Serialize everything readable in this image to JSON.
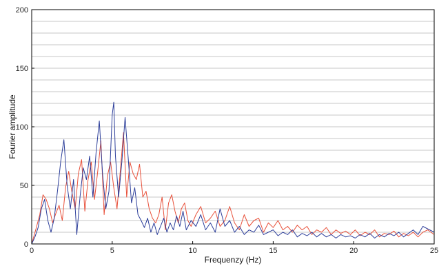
{
  "chart_data": {
    "type": "line",
    "title": "",
    "xlabel": "Frequenzy (Hz)",
    "ylabel": "Fourier amplitude",
    "xlim": [
      0,
      25
    ],
    "ylim": [
      0,
      200
    ],
    "x_ticks": [
      0,
      5,
      10,
      15,
      20,
      25
    ],
    "y_ticks": [
      0,
      50,
      100,
      150,
      200
    ],
    "x_tick_labels": [
      "0",
      "5",
      "10",
      "15",
      "20",
      "25"
    ],
    "y_tick_labels": [
      "0",
      "50",
      "100",
      "150",
      "200"
    ],
    "grid": "horizontal lines every 10 units",
    "legend": "none",
    "series": [
      {
        "color": "#e8503a",
        "points": [
          [
            0,
            0
          ],
          [
            0.25,
            12
          ],
          [
            0.5,
            25
          ],
          [
            0.7,
            42
          ],
          [
            0.9,
            38
          ],
          [
            1.1,
            30
          ],
          [
            1.3,
            18
          ],
          [
            1.5,
            26
          ],
          [
            1.7,
            33
          ],
          [
            1.9,
            20
          ],
          [
            2.1,
            48
          ],
          [
            2.3,
            62
          ],
          [
            2.5,
            44
          ],
          [
            2.7,
            30
          ],
          [
            2.9,
            60
          ],
          [
            3.1,
            72
          ],
          [
            3.3,
            28
          ],
          [
            3.5,
            55
          ],
          [
            3.7,
            70
          ],
          [
            3.9,
            38
          ],
          [
            4.1,
            62
          ],
          [
            4.3,
            88
          ],
          [
            4.5,
            25
          ],
          [
            4.7,
            58
          ],
          [
            4.9,
            70
          ],
          [
            5.1,
            48
          ],
          [
            5.3,
            30
          ],
          [
            5.5,
            62
          ],
          [
            5.7,
            95
          ],
          [
            5.9,
            40
          ],
          [
            6.1,
            70
          ],
          [
            6.3,
            60
          ],
          [
            6.5,
            55
          ],
          [
            6.7,
            68
          ],
          [
            6.9,
            40
          ],
          [
            7.1,
            45
          ],
          [
            7.3,
            30
          ],
          [
            7.5,
            22
          ],
          [
            7.7,
            18
          ],
          [
            7.9,
            25
          ],
          [
            8.1,
            40
          ],
          [
            8.3,
            12
          ],
          [
            8.5,
            35
          ],
          [
            8.7,
            42
          ],
          [
            8.9,
            28
          ],
          [
            9.1,
            18
          ],
          [
            9.3,
            30
          ],
          [
            9.5,
            35
          ],
          [
            9.7,
            20
          ],
          [
            9.9,
            15
          ],
          [
            10.2,
            25
          ],
          [
            10.5,
            32
          ],
          [
            10.8,
            18
          ],
          [
            11.1,
            22
          ],
          [
            11.4,
            28
          ],
          [
            11.7,
            15
          ],
          [
            12.0,
            20
          ],
          [
            12.3,
            32
          ],
          [
            12.6,
            18
          ],
          [
            12.9,
            12
          ],
          [
            13.2,
            25
          ],
          [
            13.5,
            15
          ],
          [
            13.8,
            20
          ],
          [
            14.1,
            22
          ],
          [
            14.4,
            10
          ],
          [
            14.7,
            18
          ],
          [
            15.0,
            14
          ],
          [
            15.3,
            20
          ],
          [
            15.6,
            12
          ],
          [
            15.9,
            15
          ],
          [
            16.2,
            10
          ],
          [
            16.5,
            16
          ],
          [
            16.8,
            12
          ],
          [
            17.1,
            15
          ],
          [
            17.4,
            8
          ],
          [
            17.7,
            12
          ],
          [
            18.0,
            10
          ],
          [
            18.3,
            14
          ],
          [
            18.6,
            8
          ],
          [
            18.9,
            12
          ],
          [
            19.2,
            9
          ],
          [
            19.5,
            11
          ],
          [
            19.8,
            8
          ],
          [
            20.1,
            12
          ],
          [
            20.4,
            7
          ],
          [
            20.7,
            10
          ],
          [
            21.0,
            8
          ],
          [
            21.3,
            12
          ],
          [
            21.6,
            6
          ],
          [
            21.9,
            9
          ],
          [
            22.2,
            8
          ],
          [
            22.5,
            11
          ],
          [
            22.8,
            6
          ],
          [
            23.1,
            9
          ],
          [
            23.4,
            7
          ],
          [
            23.7,
            10
          ],
          [
            24.0,
            6
          ],
          [
            24.3,
            10
          ],
          [
            24.6,
            12
          ],
          [
            25.0,
            8
          ]
        ]
      },
      {
        "color": "#2c3e9a",
        "points": [
          [
            0,
            0
          ],
          [
            0.2,
            6
          ],
          [
            0.4,
            14
          ],
          [
            0.6,
            30
          ],
          [
            0.8,
            38
          ],
          [
            1.0,
            20
          ],
          [
            1.2,
            10
          ],
          [
            1.4,
            22
          ],
          [
            1.6,
            45
          ],
          [
            1.8,
            70
          ],
          [
            2.0,
            89
          ],
          [
            2.2,
            50
          ],
          [
            2.4,
            30
          ],
          [
            2.6,
            55
          ],
          [
            2.8,
            8
          ],
          [
            3.0,
            40
          ],
          [
            3.2,
            65
          ],
          [
            3.4,
            55
          ],
          [
            3.6,
            75
          ],
          [
            3.8,
            40
          ],
          [
            4.0,
            78
          ],
          [
            4.2,
            105
          ],
          [
            4.4,
            60
          ],
          [
            4.6,
            30
          ],
          [
            4.8,
            45
          ],
          [
            5.0,
            110
          ],
          [
            5.1,
            121
          ],
          [
            5.2,
            75
          ],
          [
            5.4,
            40
          ],
          [
            5.6,
            70
          ],
          [
            5.8,
            108
          ],
          [
            6.0,
            72
          ],
          [
            6.2,
            35
          ],
          [
            6.4,
            48
          ],
          [
            6.6,
            25
          ],
          [
            6.8,
            20
          ],
          [
            7.0,
            14
          ],
          [
            7.2,
            22
          ],
          [
            7.4,
            10
          ],
          [
            7.6,
            18
          ],
          [
            7.8,
            8
          ],
          [
            8.0,
            15
          ],
          [
            8.2,
            22
          ],
          [
            8.4,
            10
          ],
          [
            8.6,
            18
          ],
          [
            8.8,
            12
          ],
          [
            9.0,
            24
          ],
          [
            9.2,
            15
          ],
          [
            9.4,
            28
          ],
          [
            9.6,
            12
          ],
          [
            9.9,
            20
          ],
          [
            10.2,
            15
          ],
          [
            10.5,
            25
          ],
          [
            10.8,
            12
          ],
          [
            11.1,
            18
          ],
          [
            11.4,
            10
          ],
          [
            11.7,
            30
          ],
          [
            12.0,
            15
          ],
          [
            12.3,
            20
          ],
          [
            12.6,
            10
          ],
          [
            12.9,
            15
          ],
          [
            13.2,
            8
          ],
          [
            13.5,
            12
          ],
          [
            13.8,
            10
          ],
          [
            14.1,
            16
          ],
          [
            14.4,
            8
          ],
          [
            14.7,
            10
          ],
          [
            15.0,
            12
          ],
          [
            15.3,
            7
          ],
          [
            15.6,
            10
          ],
          [
            15.9,
            8
          ],
          [
            16.2,
            12
          ],
          [
            16.5,
            6
          ],
          [
            16.8,
            9
          ],
          [
            17.1,
            7
          ],
          [
            17.4,
            10
          ],
          [
            17.7,
            6
          ],
          [
            18.0,
            9
          ],
          [
            18.3,
            6
          ],
          [
            18.6,
            8
          ],
          [
            18.9,
            5
          ],
          [
            19.2,
            8
          ],
          [
            19.5,
            6
          ],
          [
            19.8,
            7
          ],
          [
            20.1,
            5
          ],
          [
            20.4,
            8
          ],
          [
            20.7,
            6
          ],
          [
            21.0,
            9
          ],
          [
            21.3,
            5
          ],
          [
            21.6,
            8
          ],
          [
            21.9,
            6
          ],
          [
            22.2,
            9
          ],
          [
            22.5,
            7
          ],
          [
            22.8,
            10
          ],
          [
            23.1,
            6
          ],
          [
            23.4,
            9
          ],
          [
            23.7,
            12
          ],
          [
            24.0,
            8
          ],
          [
            24.3,
            15
          ],
          [
            25.0,
            10
          ]
        ]
      }
    ]
  }
}
